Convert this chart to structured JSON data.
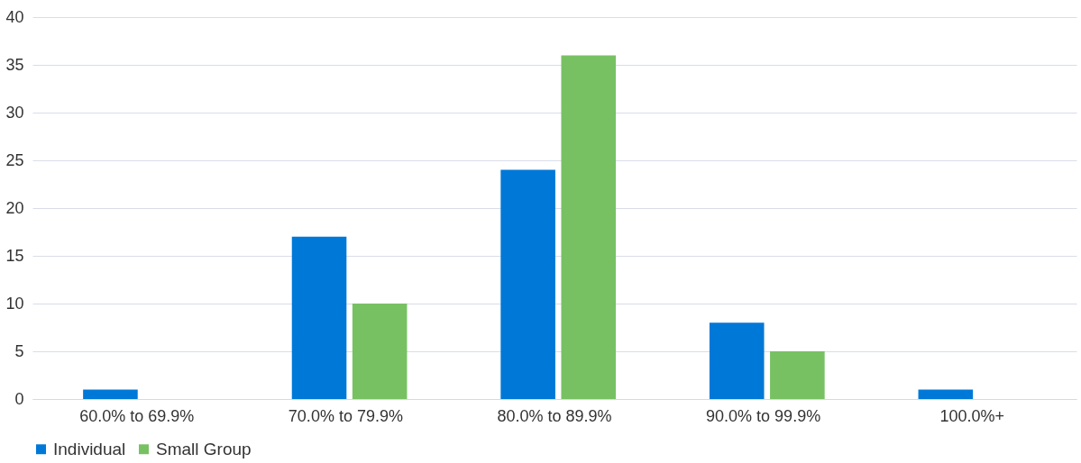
{
  "chart_data": {
    "type": "bar",
    "categories": [
      "60.0% to 69.9%",
      "70.0% to 79.9%",
      "80.0% to 89.9%",
      "90.0% to 99.9%",
      "100.0%+"
    ],
    "series": [
      {
        "name": "Individual",
        "color": "#0078d7",
        "values": [
          1,
          17,
          24,
          8,
          1
        ]
      },
      {
        "name": "Small Group",
        "color": "#77c163",
        "values": [
          0,
          10,
          36,
          5,
          0
        ]
      }
    ],
    "ylim": [
      0,
      40
    ],
    "yticks": [
      0,
      5,
      10,
      15,
      20,
      25,
      30,
      35,
      40
    ],
    "grid": "y",
    "legend": "bottom"
  }
}
